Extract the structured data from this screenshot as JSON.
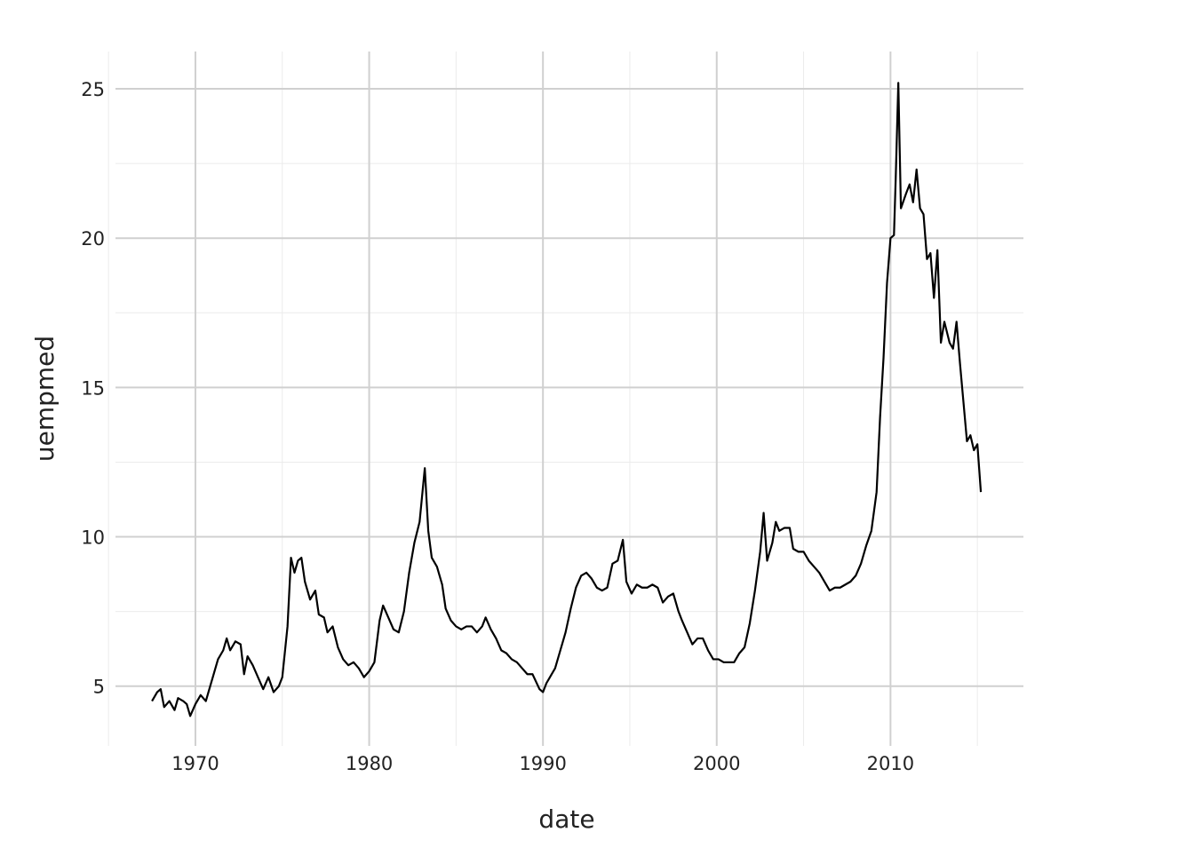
{
  "chart_data": {
    "type": "line",
    "x_label": "date",
    "y_label": "uempmed",
    "x": [
      1967.5,
      1967.8,
      1968.0,
      1968.2,
      1968.5,
      1968.8,
      1969.0,
      1969.3,
      1969.5,
      1969.7,
      1970.0,
      1970.3,
      1970.6,
      1970.8,
      1971.0,
      1971.3,
      1971.6,
      1971.8,
      1972.0,
      1972.3,
      1972.6,
      1972.8,
      1973.0,
      1973.3,
      1973.6,
      1973.9,
      1974.2,
      1974.5,
      1974.8,
      1975.0,
      1975.3,
      1975.5,
      1975.7,
      1975.9,
      1976.1,
      1976.3,
      1976.6,
      1976.9,
      1977.1,
      1977.4,
      1977.6,
      1977.9,
      1978.2,
      1978.5,
      1978.8,
      1979.1,
      1979.4,
      1979.7,
      1980.0,
      1980.3,
      1980.6,
      1980.8,
      1981.1,
      1981.4,
      1981.7,
      1982.0,
      1982.3,
      1982.6,
      1982.9,
      1983.2,
      1983.4,
      1983.6,
      1983.9,
      1984.2,
      1984.4,
      1984.7,
      1985.0,
      1985.3,
      1985.6,
      1985.9,
      1986.2,
      1986.5,
      1986.7,
      1987.0,
      1987.3,
      1987.6,
      1987.9,
      1988.2,
      1988.5,
      1988.8,
      1989.1,
      1989.4,
      1989.8,
      1990.0,
      1990.2,
      1990.4,
      1990.7,
      1991.0,
      1991.3,
      1991.6,
      1991.9,
      1992.2,
      1992.5,
      1992.8,
      1993.1,
      1993.4,
      1993.7,
      1994.0,
      1994.3,
      1994.6,
      1994.8,
      1995.1,
      1995.4,
      1995.7,
      1996.0,
      1996.3,
      1996.6,
      1996.9,
      1997.2,
      1997.5,
      1997.8,
      1998.0,
      1998.3,
      1998.6,
      1998.9,
      1999.2,
      1999.5,
      1999.8,
      2000.1,
      2000.4,
      2000.7,
      2001.0,
      2001.3,
      2001.6,
      2001.9,
      2002.2,
      2002.5,
      2002.7,
      2002.9,
      2003.2,
      2003.4,
      2003.6,
      2003.9,
      2004.2,
      2004.4,
      2004.7,
      2005.0,
      2005.3,
      2005.6,
      2005.9,
      2006.2,
      2006.5,
      2006.8,
      2007.1,
      2007.4,
      2007.7,
      2008.0,
      2008.3,
      2008.6,
      2008.9,
      2009.2,
      2009.4,
      2009.6,
      2009.8,
      2010.0,
      2010.2,
      2010.3,
      2010.45,
      2010.6,
      2010.9,
      2011.1,
      2011.3,
      2011.5,
      2011.7,
      2011.9,
      2012.1,
      2012.3,
      2012.5,
      2012.7,
      2012.9,
      2013.1,
      2013.4,
      2013.6,
      2013.8,
      2014.0,
      2014.2,
      2014.4,
      2014.6,
      2014.8,
      2015.0,
      2015.2
    ],
    "series": [
      {
        "color": "#000000",
        "values": [
          4.5,
          4.8,
          4.9,
          4.3,
          4.5,
          4.2,
          4.6,
          4.5,
          4.4,
          4.0,
          4.4,
          4.7,
          4.5,
          4.9,
          5.3,
          5.9,
          6.2,
          6.6,
          6.2,
          6.5,
          6.4,
          5.4,
          6.0,
          5.7,
          5.3,
          4.9,
          5.3,
          4.8,
          5.0,
          5.3,
          7.0,
          9.3,
          8.8,
          9.2,
          9.3,
          8.5,
          7.9,
          8.2,
          7.4,
          7.3,
          6.8,
          7.0,
          6.3,
          5.9,
          5.7,
          5.8,
          5.6,
          5.3,
          5.5,
          5.8,
          7.2,
          7.7,
          7.3,
          6.9,
          6.8,
          7.5,
          8.8,
          9.8,
          10.5,
          12.3,
          10.2,
          9.3,
          9.0,
          8.4,
          7.6,
          7.2,
          7.0,
          6.9,
          7.0,
          7.0,
          6.8,
          7.0,
          7.3,
          6.9,
          6.6,
          6.2,
          6.1,
          5.9,
          5.8,
          5.6,
          5.4,
          5.4,
          4.9,
          4.8,
          5.1,
          5.3,
          5.6,
          6.2,
          6.8,
          7.6,
          8.3,
          8.7,
          8.8,
          8.6,
          8.3,
          8.2,
          8.3,
          9.1,
          9.2,
          9.9,
          8.5,
          8.1,
          8.4,
          8.3,
          8.3,
          8.4,
          8.3,
          7.8,
          8.0,
          8.1,
          7.5,
          7.2,
          6.8,
          6.4,
          6.6,
          6.6,
          6.2,
          5.9,
          5.9,
          5.8,
          5.8,
          5.8,
          6.1,
          6.3,
          7.1,
          8.2,
          9.5,
          10.8,
          9.2,
          9.8,
          10.5,
          10.2,
          10.3,
          10.3,
          9.6,
          9.5,
          9.5,
          9.2,
          9.0,
          8.8,
          8.5,
          8.2,
          8.3,
          8.3,
          8.4,
          8.5,
          8.7,
          9.1,
          9.7,
          10.2,
          11.5,
          14.0,
          16.0,
          18.5,
          20.0,
          20.1,
          22.0,
          25.2,
          21.0,
          21.5,
          21.8,
          21.2,
          22.3,
          21.0,
          20.8,
          19.3,
          19.5,
          18.0,
          19.6,
          16.5,
          17.2,
          16.5,
          16.3,
          17.2,
          15.8,
          14.5,
          13.2,
          13.4,
          12.9,
          13.1,
          11.5
        ]
      }
    ],
    "xlim": [
      1965.4,
      2017.65
    ],
    "ylim": [
      3.0,
      26.25
    ],
    "xticks": [
      1970,
      1980,
      1990,
      2000,
      2010
    ],
    "yticks": [
      5,
      10,
      15,
      20,
      25
    ],
    "x_minor_ticks": [
      1965,
      1975,
      1985,
      1995,
      2005,
      2015
    ],
    "y_minor_ticks": [
      7.5,
      12.5,
      17.5,
      22.5
    ],
    "grid": true
  }
}
